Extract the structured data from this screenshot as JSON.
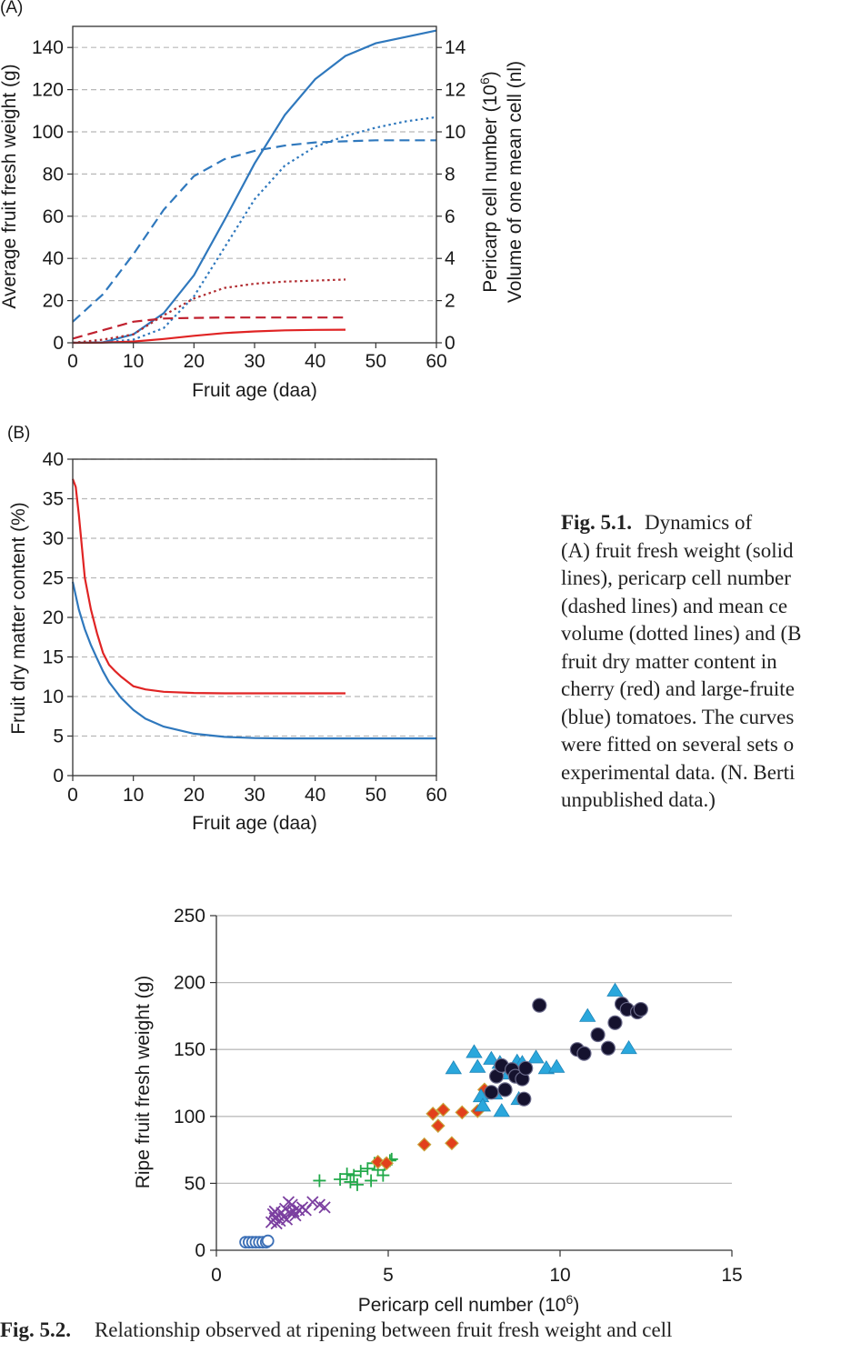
{
  "panel_a": {
    "label": "(A)",
    "chart_data": {
      "type": "line",
      "xlabel": "Fruit age (daa)",
      "ylabel": "Average fruit fresh weight (g)",
      "y2label_lines": [
        "Pericarp cell number (10",
        ")",
        "Volume of one mean cell (nl)"
      ],
      "y2label_superscript": "6",
      "xlim": [
        0,
        60
      ],
      "ylim": [
        0,
        150
      ],
      "y2lim": [
        0,
        15
      ],
      "xticks": [
        "0",
        "10",
        "20",
        "30",
        "40",
        "50",
        "60"
      ],
      "yticks": [
        "0",
        "20",
        "40",
        "60",
        "80",
        "100",
        "120",
        "140"
      ],
      "y2ticks": [
        "0",
        "2",
        "4",
        "6",
        "8",
        "10",
        "12",
        "14"
      ],
      "grid": "horizontal dashed",
      "series": [
        {
          "kind": "fresh weight",
          "fruit": "large-fruited",
          "style": "solid",
          "color": "#2f78bd",
          "axis": "left",
          "x": [
            0,
            5,
            10,
            15,
            20,
            25,
            30,
            35,
            40,
            45,
            50,
            55,
            60
          ],
          "y": [
            0,
            0.2,
            4,
            14,
            32,
            58,
            85,
            108,
            125,
            136,
            142,
            145,
            148
          ]
        },
        {
          "kind": "cell number",
          "fruit": "large-fruited",
          "style": "dashed",
          "color": "#2f78bd",
          "axis": "right",
          "x": [
            0,
            5,
            10,
            15,
            20,
            25,
            30,
            35,
            40,
            45,
            50,
            55,
            60
          ],
          "y": [
            1.0,
            2.3,
            4.2,
            6.3,
            7.9,
            8.7,
            9.1,
            9.35,
            9.5,
            9.55,
            9.6,
            9.6,
            9.6
          ]
        },
        {
          "kind": "mean cell volume",
          "fruit": "large-fruited",
          "style": "dotted",
          "color": "#2f78bd",
          "axis": "right",
          "x": [
            0,
            5,
            10,
            15,
            20,
            25,
            30,
            35,
            40,
            45,
            50,
            55,
            60
          ],
          "y": [
            0,
            0.02,
            0.15,
            0.7,
            2.2,
            4.5,
            6.8,
            8.4,
            9.3,
            9.8,
            10.2,
            10.5,
            10.7
          ]
        },
        {
          "kind": "fresh weight",
          "fruit": "cherry",
          "style": "solid",
          "color": "#e02424",
          "axis": "left",
          "x": [
            0,
            5,
            10,
            15,
            20,
            25,
            30,
            35,
            40,
            45
          ],
          "y": [
            0,
            0.1,
            0.6,
            1.8,
            3.3,
            4.6,
            5.4,
            5.9,
            6.1,
            6.2
          ]
        },
        {
          "kind": "cell number",
          "fruit": "cherry",
          "style": "dashed",
          "color": "#c0212f",
          "axis": "right",
          "x": [
            0,
            5,
            10,
            15,
            20,
            25,
            30,
            35,
            40,
            45
          ],
          "y": [
            0.2,
            0.6,
            1.0,
            1.15,
            1.18,
            1.2,
            1.2,
            1.2,
            1.2,
            1.2
          ]
        },
        {
          "kind": "mean cell volume",
          "fruit": "cherry",
          "style": "dotted",
          "color": "#b02a2f",
          "axis": "right",
          "x": [
            0,
            5,
            10,
            15,
            20,
            25,
            30,
            35,
            40,
            45
          ],
          "y": [
            0,
            0.15,
            0.4,
            1.3,
            2.1,
            2.6,
            2.8,
            2.9,
            2.95,
            3.0
          ]
        }
      ]
    }
  },
  "panel_b": {
    "label": "(B)",
    "chart_data": {
      "type": "line",
      "xlabel": "Fruit age (daa)",
      "ylabel": "Fruit dry matter content (%)",
      "xlim": [
        0,
        60
      ],
      "ylim": [
        0,
        40
      ],
      "xticks": [
        "0",
        "10",
        "20",
        "30",
        "40",
        "50",
        "60"
      ],
      "yticks": [
        "0",
        "5",
        "10",
        "15",
        "20",
        "25",
        "30",
        "35",
        "40"
      ],
      "grid": "horizontal dashed",
      "series": [
        {
          "fruit": "cherry",
          "color": "#e02424",
          "x": [
            0,
            0.5,
            1,
            2,
            3,
            4,
            5,
            6,
            7,
            8,
            10,
            12,
            15,
            20,
            25,
            30,
            35,
            40,
            45
          ],
          "y": [
            37.5,
            36.5,
            33,
            25,
            21,
            18,
            15.5,
            14,
            13.2,
            12.5,
            11.3,
            10.9,
            10.6,
            10.45,
            10.4,
            10.4,
            10.4,
            10.4,
            10.4
          ]
        },
        {
          "fruit": "large-fruited",
          "color": "#2f78bd",
          "x": [
            0,
            1,
            2,
            3,
            4,
            5,
            6,
            7,
            8,
            10,
            12,
            15,
            20,
            25,
            30,
            35,
            40,
            45,
            50,
            55,
            60
          ],
          "y": [
            24.5,
            21,
            18.5,
            16.5,
            14.8,
            13.2,
            11.8,
            10.8,
            9.8,
            8.3,
            7.2,
            6.2,
            5.3,
            4.9,
            4.75,
            4.7,
            4.7,
            4.7,
            4.7,
            4.7,
            4.7
          ]
        }
      ]
    }
  },
  "caption": {
    "fig_label": "Fig. 5.1.",
    "first": "Dynamics of",
    "lines": [
      "(A) fruit fresh weight (solid",
      "lines), pericarp cell number",
      "(dashed lines) and mean ce",
      "volume (dotted lines) and (B",
      "fruit dry matter content in",
      "cherry (red) and large-fruite",
      "(blue) tomatoes. The curves",
      "were fitted on several sets o",
      "experimental data. (N. Berti",
      "unpublished data.)"
    ]
  },
  "panel_c": {
    "chart_data": {
      "type": "scatter",
      "xlabel": "Pericarp cell number (10",
      "xlabel_superscript": "6",
      "xlabel_suffix": ")",
      "ylabel": "Ripe fruit fresh weight (g)",
      "xlim": [
        0,
        15
      ],
      "ylim": [
        0,
        250
      ],
      "xticks": [
        "0",
        "5",
        "10",
        "15"
      ],
      "yticks": [
        "0",
        "50",
        "100",
        "150",
        "200",
        "250"
      ],
      "grid": "horizontal solid",
      "series": [
        {
          "marker": "open-circle",
          "color": "#3b6fb6",
          "points": [
            [
              0.85,
              6
            ],
            [
              0.95,
              6
            ],
            [
              1.05,
              6
            ],
            [
              1.15,
              6
            ],
            [
              1.25,
              6
            ],
            [
              1.35,
              6
            ],
            [
              1.45,
              6
            ],
            [
              1.5,
              7
            ]
          ]
        },
        {
          "marker": "cross",
          "color": "#7b3fa0",
          "points": [
            [
              1.6,
              21
            ],
            [
              1.65,
              27
            ],
            [
              1.7,
              24
            ],
            [
              1.75,
              20
            ],
            [
              1.8,
              26
            ],
            [
              1.85,
              22
            ],
            [
              1.9,
              28
            ],
            [
              1.95,
              25
            ],
            [
              2.0,
              31
            ],
            [
              2.05,
              23
            ],
            [
              2.1,
              36
            ],
            [
              2.15,
              28
            ],
            [
              2.2,
              34
            ],
            [
              2.3,
              26
            ],
            [
              2.4,
              30
            ],
            [
              2.5,
              32
            ],
            [
              2.6,
              30
            ],
            [
              2.8,
              36
            ],
            [
              3.0,
              34
            ],
            [
              3.15,
              32
            ],
            [
              1.7,
              29
            ],
            [
              2.25,
              29
            ]
          ]
        },
        {
          "marker": "plus",
          "color": "#22a94a",
          "points": [
            [
              3.0,
              52
            ],
            [
              3.6,
              53
            ],
            [
              3.8,
              57
            ],
            [
              3.9,
              51
            ],
            [
              4.0,
              56
            ],
            [
              4.1,
              49
            ],
            [
              4.2,
              59
            ],
            [
              4.4,
              61
            ],
            [
              4.5,
              52
            ],
            [
              4.6,
              65
            ],
            [
              4.7,
              60
            ],
            [
              4.85,
              56
            ],
            [
              4.9,
              64
            ],
            [
              5.05,
              67
            ],
            [
              5.1,
              68
            ]
          ]
        },
        {
          "marker": "diamond",
          "color": "#e2401c",
          "points": [
            [
              4.7,
              66
            ],
            [
              4.95,
              65
            ],
            [
              6.05,
              79
            ],
            [
              6.3,
              102
            ],
            [
              6.45,
              93
            ],
            [
              6.6,
              105
            ],
            [
              6.85,
              80
            ],
            [
              7.15,
              103
            ],
            [
              7.6,
              104
            ],
            [
              7.8,
              120
            ]
          ]
        },
        {
          "marker": "triangle",
          "color": "#2aa7dc",
          "points": [
            [
              6.9,
              136
            ],
            [
              7.5,
              148
            ],
            [
              7.6,
              137
            ],
            [
              7.7,
              115
            ],
            [
              7.75,
              108
            ],
            [
              8.0,
              143
            ],
            [
              8.1,
              117
            ],
            [
              8.25,
              140
            ],
            [
              8.5,
              132
            ],
            [
              8.75,
              141
            ],
            [
              8.8,
              113
            ],
            [
              8.9,
              140
            ],
            [
              9.3,
              144
            ],
            [
              9.6,
              136
            ],
            [
              9.9,
              137
            ],
            [
              10.8,
              175
            ],
            [
              11.6,
              194
            ],
            [
              12.0,
              151
            ],
            [
              8.3,
              104
            ]
          ]
        },
        {
          "marker": "filled-circle",
          "color": "#15122e",
          "points": [
            [
              8.0,
              118
            ],
            [
              8.15,
              130
            ],
            [
              8.3,
              138
            ],
            [
              8.4,
              120
            ],
            [
              8.6,
              135
            ],
            [
              8.7,
              130
            ],
            [
              8.9,
              128
            ],
            [
              8.95,
              113
            ],
            [
              9.0,
              136
            ],
            [
              9.4,
              183
            ],
            [
              10.5,
              150
            ],
            [
              10.7,
              147
            ],
            [
              11.1,
              161
            ],
            [
              11.4,
              151
            ],
            [
              11.6,
              170
            ],
            [
              11.8,
              184
            ],
            [
              11.95,
              180
            ],
            [
              12.25,
              178
            ],
            [
              12.35,
              180
            ]
          ]
        }
      ]
    }
  },
  "footer": {
    "fig_label": "Fig. 5.2.",
    "text": "Relationship observed at ripening between fruit fresh weight and cell"
  }
}
